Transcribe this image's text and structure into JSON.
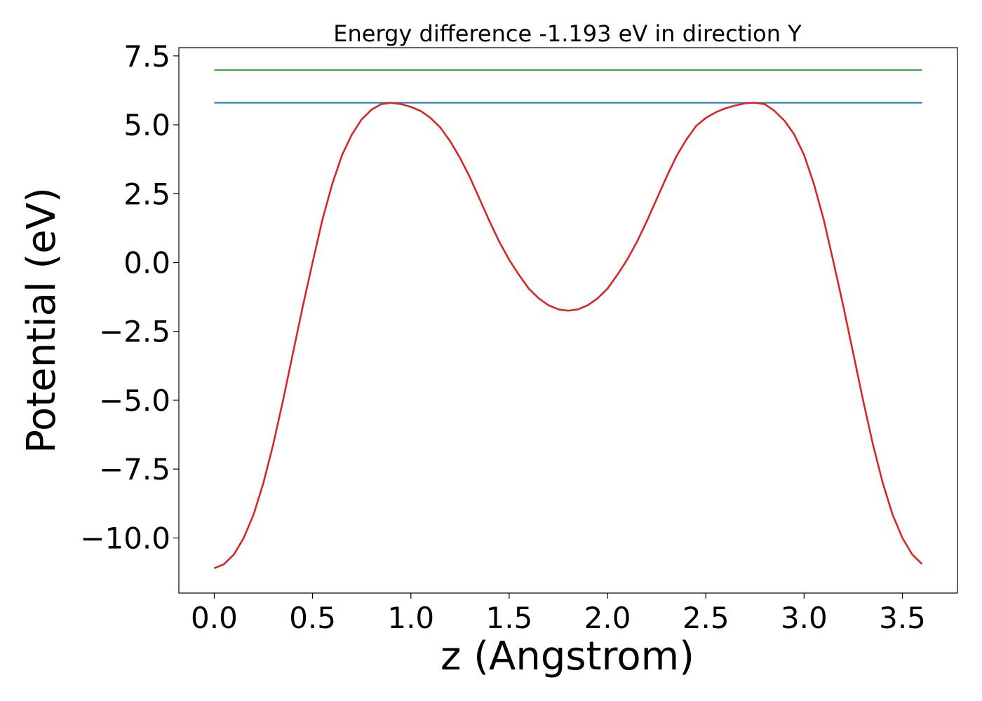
{
  "chart_data": {
    "type": "line",
    "title": "Energy difference -1.193 eV in direction Y",
    "xlabel": "z (Angstrom)",
    "ylabel": "Potential (eV)",
    "xlim": [
      -0.18,
      3.78
    ],
    "ylim": [
      -12.0,
      7.8
    ],
    "xticks": [
      0.0,
      0.5,
      1.0,
      1.5,
      2.0,
      2.5,
      3.0,
      3.5
    ],
    "yticks": [
      -10.0,
      -7.5,
      -5.0,
      -2.5,
      0.0,
      2.5,
      5.0,
      7.5
    ],
    "xtick_labels": [
      "0.0",
      "0.5",
      "1.0",
      "1.5",
      "2.0",
      "2.5",
      "3.0",
      "3.5"
    ],
    "ytick_labels": [
      "−10.0",
      "−7.5",
      "−5.0",
      "−2.5",
      "0.0",
      "2.5",
      "5.0",
      "7.5"
    ],
    "grid": false,
    "series": [
      {
        "color": "#2ca02c",
        "x": [
          0.0,
          3.6
        ],
        "y": [
          6.99,
          6.99
        ]
      },
      {
        "color": "#1f77b4",
        "x": [
          0.0,
          3.6
        ],
        "y": [
          5.8,
          5.8
        ]
      },
      {
        "color": "#d62728",
        "x": [
          0.0,
          0.05,
          0.1,
          0.15,
          0.2,
          0.25,
          0.3,
          0.35,
          0.4,
          0.45,
          0.5,
          0.55,
          0.6,
          0.65,
          0.7,
          0.75,
          0.8,
          0.85,
          0.9,
          0.95,
          1.0,
          1.05,
          1.1,
          1.15,
          1.2,
          1.25,
          1.3,
          1.35,
          1.4,
          1.45,
          1.5,
          1.55,
          1.6,
          1.65,
          1.7,
          1.75,
          1.8,
          1.85,
          1.9,
          1.95,
          2.0,
          2.05,
          2.1,
          2.15,
          2.2,
          2.25,
          2.3,
          2.35,
          2.4,
          2.45,
          2.5,
          2.55,
          2.6,
          2.65,
          2.7,
          2.75,
          2.8,
          2.85,
          2.9,
          2.95,
          3.0,
          3.05,
          3.1,
          3.15,
          3.2,
          3.25,
          3.3,
          3.35,
          3.4,
          3.45,
          3.5,
          3.55,
          3.6
        ],
        "y": [
          -11.1,
          -10.95,
          -10.6,
          -10.0,
          -9.15,
          -8.0,
          -6.6,
          -5.0,
          -3.3,
          -1.6,
          0.0,
          1.55,
          2.85,
          3.9,
          4.65,
          5.2,
          5.55,
          5.75,
          5.8,
          5.75,
          5.65,
          5.5,
          5.25,
          4.9,
          4.4,
          3.8,
          3.1,
          2.3,
          1.5,
          0.75,
          0.1,
          -0.45,
          -0.95,
          -1.3,
          -1.55,
          -1.7,
          -1.75,
          -1.7,
          -1.55,
          -1.3,
          -0.95,
          -0.45,
          0.1,
          0.75,
          1.5,
          2.3,
          3.1,
          3.85,
          4.45,
          4.95,
          5.25,
          5.45,
          5.6,
          5.7,
          5.78,
          5.8,
          5.75,
          5.5,
          5.15,
          4.65,
          3.9,
          2.85,
          1.55,
          0.0,
          -1.6,
          -3.3,
          -5.0,
          -6.6,
          -8.0,
          -9.15,
          -10.0,
          -10.6,
          -10.95
        ]
      }
    ]
  }
}
